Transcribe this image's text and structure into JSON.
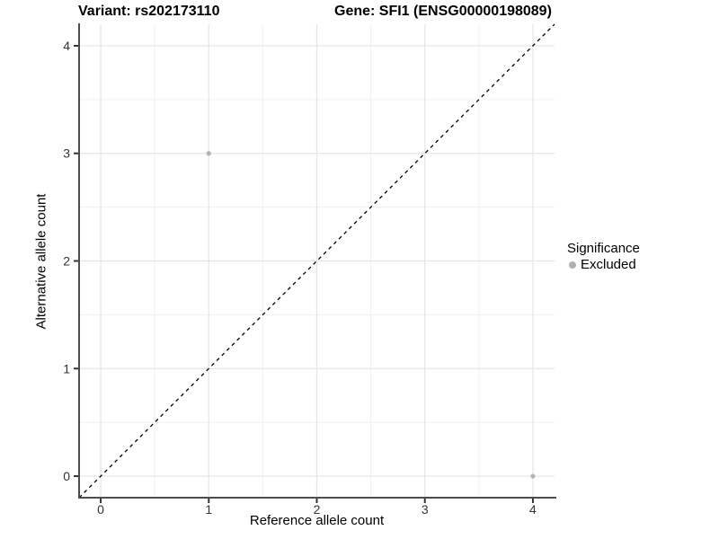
{
  "chart_data": {
    "type": "scatter",
    "titles": {
      "variant": "Variant: rs202173110",
      "gene": "Gene: SFI1 (ENSG00000198089)"
    },
    "xlabel": "Reference allele count",
    "ylabel": "Alternative allele count",
    "xlim": [
      -0.2,
      4.2
    ],
    "ylim": [
      -0.2,
      4.2
    ],
    "x_ticks": [
      0,
      1,
      2,
      3,
      4
    ],
    "y_ticks": [
      0,
      1,
      2,
      3,
      4
    ],
    "grid": "major integer gridlines with minor half-step gridlines, light gray on white",
    "points": [
      {
        "x": 1,
        "y": 3,
        "series": "Excluded"
      },
      {
        "x": 4,
        "y": 0,
        "series": "Excluded"
      }
    ],
    "reference_line": {
      "slope": 1,
      "intercept": 0,
      "style": "dashed",
      "color": "#000000"
    },
    "legend": {
      "title": "Significance",
      "position": "right",
      "items": [
        {
          "label": "Excluded",
          "color": "#b0b0b0"
        }
      ]
    },
    "colors": {
      "point": "#b4b4b4",
      "grid_major": "#e4e4e4",
      "grid_minor": "#f1f1f1",
      "axis_line": "#4d4d4d",
      "tick_label": "#333333"
    }
  }
}
